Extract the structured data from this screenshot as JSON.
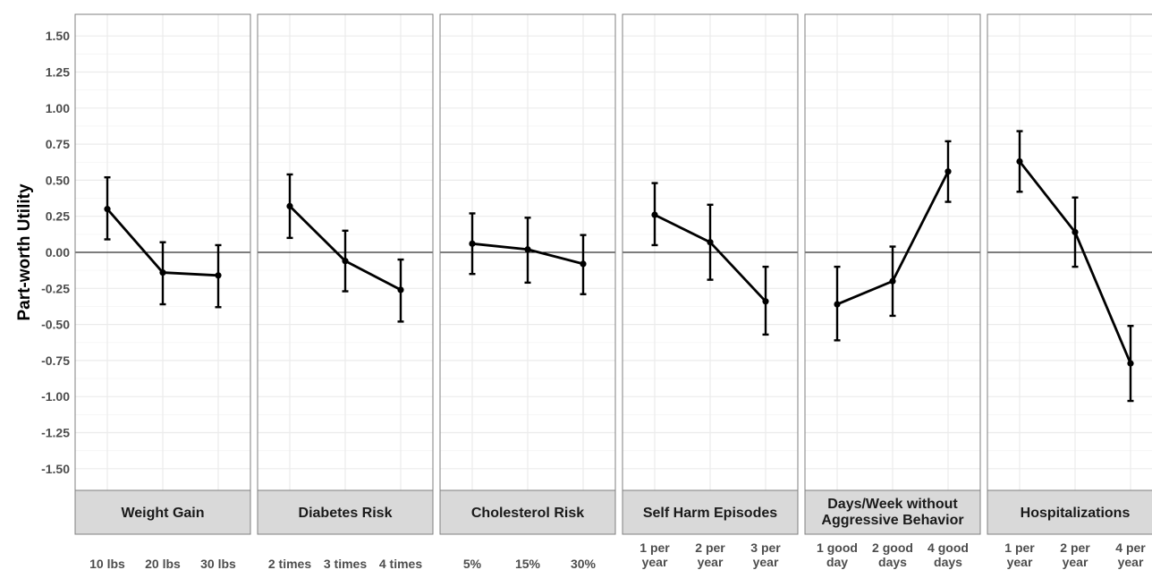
{
  "chart_data": {
    "type": "line",
    "ylabel": "Part-worth Utility",
    "ylim": [
      -1.65,
      1.65
    ],
    "yticks": [
      "1.50",
      "1.25",
      "1.00",
      "0.75",
      "0.50",
      "0.25",
      "0.00",
      "-0.25",
      "-0.50",
      "-0.75",
      "-1.00",
      "-1.25",
      "-1.50"
    ],
    "ytick_values": [
      1.5,
      1.25,
      1.0,
      0.75,
      0.5,
      0.25,
      0.0,
      -0.25,
      -0.5,
      -0.75,
      -1.0,
      -1.25,
      -1.5
    ],
    "reference_line": 0,
    "grid": true,
    "facet_position": "bottom",
    "line_color": "#000000",
    "strip_color": "#d9d9d9",
    "facets": [
      {
        "label": [
          "Weight Gain"
        ],
        "categories": [
          [
            "10 lbs"
          ],
          [
            "20 lbs"
          ],
          [
            "30 lbs"
          ]
        ],
        "values": [
          0.3,
          -0.14,
          -0.16
        ],
        "lower": [
          0.09,
          -0.36,
          -0.38
        ],
        "upper": [
          0.52,
          0.07,
          0.05
        ]
      },
      {
        "label": [
          "Diabetes Risk"
        ],
        "categories": [
          [
            "2 times"
          ],
          [
            "3 times"
          ],
          [
            "4 times"
          ]
        ],
        "values": [
          0.32,
          -0.06,
          -0.26
        ],
        "lower": [
          0.1,
          -0.27,
          -0.48
        ],
        "upper": [
          0.54,
          0.15,
          -0.05
        ]
      },
      {
        "label": [
          "Cholesterol Risk"
        ],
        "categories": [
          [
            "5%"
          ],
          [
            "15%"
          ],
          [
            "30%"
          ]
        ],
        "values": [
          0.06,
          0.02,
          -0.08
        ],
        "lower": [
          -0.15,
          -0.21,
          -0.29
        ],
        "upper": [
          0.27,
          0.24,
          0.12
        ]
      },
      {
        "label": [
          "Self Harm Episodes"
        ],
        "categories": [
          [
            "1 per",
            "year"
          ],
          [
            "2 per",
            "year"
          ],
          [
            "3 per",
            "year"
          ]
        ],
        "values": [
          0.26,
          0.07,
          -0.34
        ],
        "lower": [
          0.05,
          -0.19,
          -0.57
        ],
        "upper": [
          0.48,
          0.33,
          -0.1
        ]
      },
      {
        "label": [
          "Days/Week without",
          "Aggressive Behavior"
        ],
        "categories": [
          [
            "1 good",
            "day"
          ],
          [
            "2 good",
            "days"
          ],
          [
            "4 good",
            "days"
          ]
        ],
        "values": [
          -0.36,
          -0.2,
          0.56
        ],
        "lower": [
          -0.61,
          -0.44,
          0.35
        ],
        "upper": [
          -0.1,
          0.04,
          0.77
        ]
      },
      {
        "label": [
          "Hospitalizations"
        ],
        "categories": [
          [
            "1 per",
            "year"
          ],
          [
            "2 per",
            "year"
          ],
          [
            "4 per",
            "year"
          ]
        ],
        "values": [
          0.63,
          0.14,
          -0.77
        ],
        "lower": [
          0.42,
          -0.1,
          -1.03
        ],
        "upper": [
          0.84,
          0.38,
          -0.51
        ]
      }
    ]
  }
}
